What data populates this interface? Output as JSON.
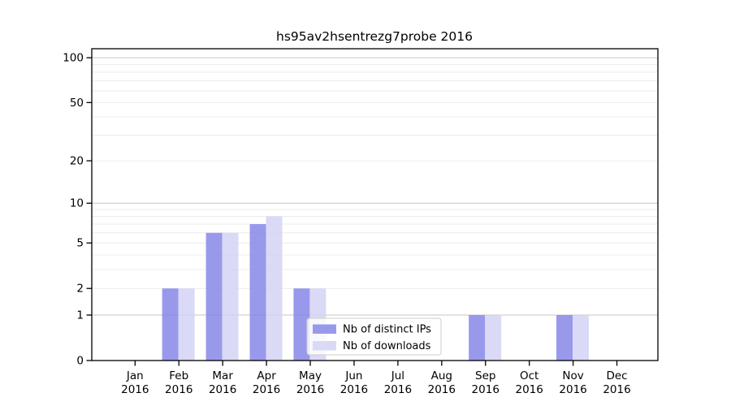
{
  "page": {
    "background": "#ffffff"
  },
  "chart_data": {
    "type": "bar",
    "title": "hs95av2hsentrezg7probe 2016",
    "x_categories": [
      "Jan",
      "Feb",
      "Mar",
      "Apr",
      "May",
      "Jun",
      "Jul",
      "Aug",
      "Sep",
      "Oct",
      "Nov",
      "Dec"
    ],
    "x_year_label": "2016",
    "series": [
      {
        "name": "Nb of distinct IPs",
        "color_effective": "#9999ec",
        "color_base": "#8383e8",
        "values": [
          0,
          2,
          6,
          7,
          2,
          0,
          0,
          0,
          1,
          0,
          1,
          0
        ]
      },
      {
        "name": "Nb of downloads",
        "color_effective": "#dadaf6",
        "color_base": "#d2d2f4",
        "values": [
          0,
          2,
          6,
          8,
          2,
          0,
          0,
          0,
          1,
          0,
          1,
          0
        ]
      }
    ],
    "y_axis": {
      "scale": "log1p",
      "tick_values": [
        0,
        1,
        2,
        5,
        10,
        20,
        50,
        100
      ],
      "major_grid_values": [
        1,
        10,
        100
      ],
      "minor_grid_values": [
        2,
        3,
        4,
        5,
        6,
        7,
        8,
        9,
        20,
        30,
        40,
        50,
        60,
        70,
        80,
        90
      ],
      "range_min": 0,
      "range_max": 115
    },
    "legend": {
      "position": "lower-center",
      "labels": [
        "Nb of distinct IPs",
        "Nb of downloads"
      ]
    },
    "grid": {
      "major_color": "#c6c6c6",
      "minor_color": "#ececec"
    },
    "axis_color": "#000000",
    "legend_border_color": "#cccccc"
  }
}
